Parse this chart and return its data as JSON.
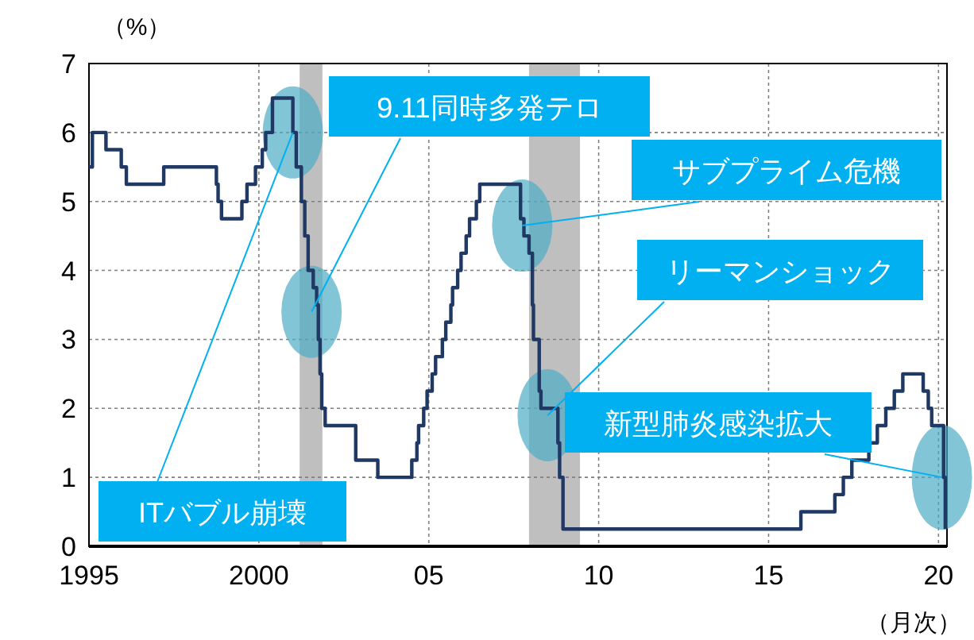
{
  "chart_data": {
    "type": "step",
    "ylabel": "（%）",
    "xlabel": "（月次）",
    "x": [
      1995.0,
      1995.1,
      1995.5,
      1995.95,
      1996.1,
      1997.2,
      1998.75,
      1998.8,
      1998.9,
      1999.5,
      1999.65,
      1999.9,
      2000.1,
      2000.2,
      2000.4,
      2001.0,
      2001.1,
      2001.25,
      2001.35,
      2001.45,
      2001.6,
      2001.7,
      2001.75,
      2001.8,
      2001.85,
      2001.95,
      2002.85,
      2003.5,
      2004.5,
      2004.65,
      2004.7,
      2004.85,
      2004.95,
      2005.1,
      2005.2,
      2005.4,
      2005.5,
      2005.65,
      2005.7,
      2005.85,
      2005.95,
      2006.1,
      2006.2,
      2006.4,
      2006.5,
      2007.7,
      2007.8,
      2007.95,
      2008.05,
      2008.08,
      2008.25,
      2008.3,
      2008.8,
      2008.85,
      2008.95,
      2015.95,
      2016.95,
      2017.2,
      2017.45,
      2017.95,
      2018.2,
      2018.45,
      2018.7,
      2018.95,
      2019.55,
      2019.7,
      2019.8,
      2020.15,
      2020.2
    ],
    "series": [
      {
        "color": "#1f3864",
        "values": [
          5.5,
          6.0,
          5.75,
          5.5,
          5.25,
          5.5,
          5.25,
          5.0,
          4.75,
          5.0,
          5.25,
          5.5,
          5.75,
          6.0,
          6.5,
          6.0,
          5.5,
          5.0,
          4.5,
          4.0,
          3.75,
          3.5,
          3.0,
          2.5,
          2.0,
          1.75,
          1.25,
          1.0,
          1.25,
          1.5,
          1.75,
          2.0,
          2.25,
          2.5,
          2.75,
          3.0,
          3.25,
          3.5,
          3.75,
          4.0,
          4.25,
          4.5,
          4.75,
          5.0,
          5.25,
          4.75,
          4.5,
          4.25,
          3.5,
          3.0,
          2.25,
          2.0,
          1.5,
          1.0,
          0.25,
          0.5,
          0.75,
          1.0,
          1.25,
          1.5,
          1.75,
          2.0,
          2.25,
          2.5,
          2.25,
          2.0,
          1.75,
          1.0,
          0.25
        ]
      }
    ],
    "xlim": [
      1995,
      2020.25
    ],
    "ylim": [
      0,
      7
    ],
    "xticks": [
      1995,
      2000,
      {
        "value": 2005,
        "label": "05"
      },
      {
        "value": 2010,
        "label": "10"
      },
      {
        "value": 2015,
        "label": "15"
      },
      {
        "value": 2020,
        "label": "20"
      }
    ],
    "yticks": [
      0,
      1,
      2,
      3,
      4,
      5,
      6,
      7
    ],
    "grid": true,
    "line_style": "solid",
    "bands": [
      {
        "axis": "x",
        "from": 2001.2,
        "to": 2001.87,
        "color": "#bfbfbf"
      },
      {
        "axis": "x",
        "from": 2007.95,
        "to": 2009.45,
        "color": "#bfbfbf"
      }
    ],
    "annotations": [
      {
        "text": "ITバブル崩壊",
        "x": 2001.0,
        "y": 6.0
      },
      {
        "text": "9.11同時多発テロ",
        "x": 2001.55,
        "y": 3.4
      },
      {
        "text": "サブプライム危機",
        "x": 2007.75,
        "y": 4.65
      },
      {
        "text": "リーマンショック",
        "x": 2008.5,
        "y": 1.9
      },
      {
        "text": "新型肺炎感染拡大",
        "x": 2020.1,
        "y": 1.0
      }
    ]
  }
}
